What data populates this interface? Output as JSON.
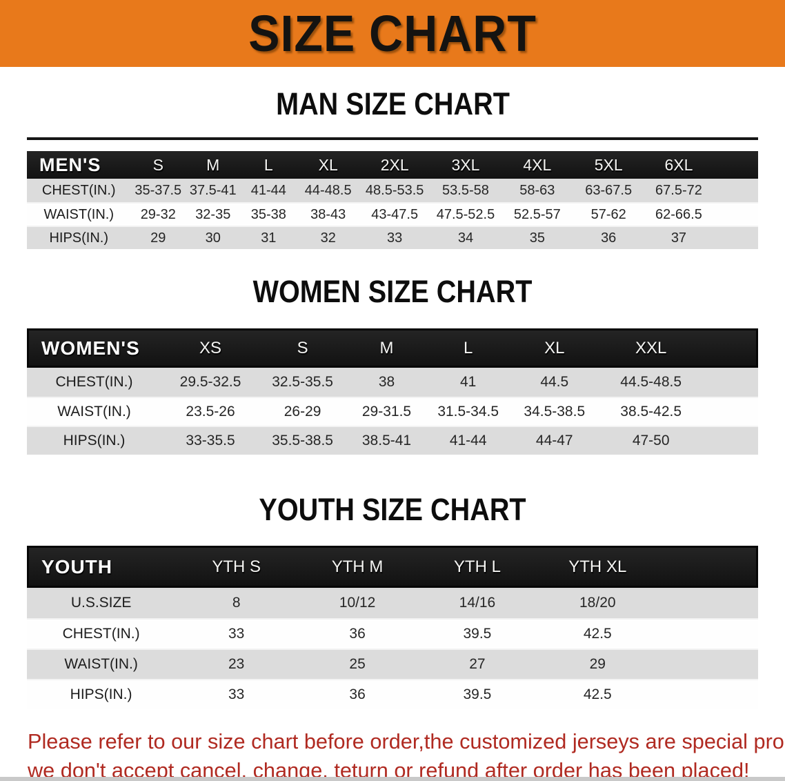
{
  "banner": {
    "title": "SIZE CHART"
  },
  "colors": {
    "banner_bg": "#e8791b",
    "header_bar_bg": "#171717",
    "row_stripe_gray": "#dcdcdc",
    "disclaimer_red": "#b02a21"
  },
  "sections": [
    {
      "heading": "MAN SIZE CHART",
      "table": {
        "header_label": "MEN'S",
        "columns": [
          "S",
          "M",
          "L",
          "XL",
          "2XL",
          "3XL",
          "4XL",
          "5XL",
          "6XL"
        ],
        "rows": [
          {
            "label": "CHEST(IN.)",
            "values": [
              "35-37.5",
              "37.5-41",
              "41-44",
              "44-48.5",
              "48.5-53.5",
              "53.5-58",
              "58-63",
              "63-67.5",
              "67.5-72"
            ]
          },
          {
            "label": "WAIST(IN.)",
            "values": [
              "29-32",
              "32-35",
              "35-38",
              "38-43",
              "43-47.5",
              "47.5-52.5",
              "52.5-57",
              "57-62",
              "62-66.5"
            ]
          },
          {
            "label": "HIPS(IN.)",
            "values": [
              "29",
              "30",
              "31",
              "32",
              "33",
              "34",
              "35",
              "36",
              "37"
            ]
          }
        ]
      }
    },
    {
      "heading": "WOMEN SIZE CHART",
      "table": {
        "header_label": "WOMEN'S",
        "columns": [
          "XS",
          "S",
          "M",
          "L",
          "XL",
          "XXL"
        ],
        "rows": [
          {
            "label": "CHEST(IN.)",
            "values": [
              "29.5-32.5",
              "32.5-35.5",
              "38",
              "41",
              "44.5",
              "44.5-48.5"
            ]
          },
          {
            "label": "WAIST(IN.)",
            "values": [
              "23.5-26",
              "26-29",
              "29-31.5",
              "31.5-34.5",
              "34.5-38.5",
              "38.5-42.5"
            ]
          },
          {
            "label": "HIPS(IN.)",
            "values": [
              "33-35.5",
              "35.5-38.5",
              "38.5-41",
              "41-44",
              "44-47",
              "47-50"
            ]
          }
        ]
      }
    },
    {
      "heading": "YOUTH SIZE CHART",
      "table": {
        "header_label": "YOUTH",
        "columns": [
          "YTH S",
          "YTH M",
          "YTH L",
          "YTH XL"
        ],
        "rows": [
          {
            "label": "U.S.SIZE",
            "values": [
              "8",
              "10/12",
              "14/16",
              "18/20"
            ]
          },
          {
            "label": "CHEST(IN.)",
            "values": [
              "33",
              "36",
              "39.5",
              "42.5"
            ]
          },
          {
            "label": "WAIST(IN.)",
            "values": [
              "23",
              "25",
              "27",
              "29"
            ]
          },
          {
            "label": "HIPS(IN.)",
            "values": [
              "33",
              "36",
              "39.5",
              "42.5"
            ]
          }
        ]
      }
    }
  ],
  "disclaimer": {
    "line1": "Please refer to our size chart before order,the customized jerseys are special products,",
    "line2": "we don't accept cancel, change, teturn or refund after order has been placed!"
  }
}
